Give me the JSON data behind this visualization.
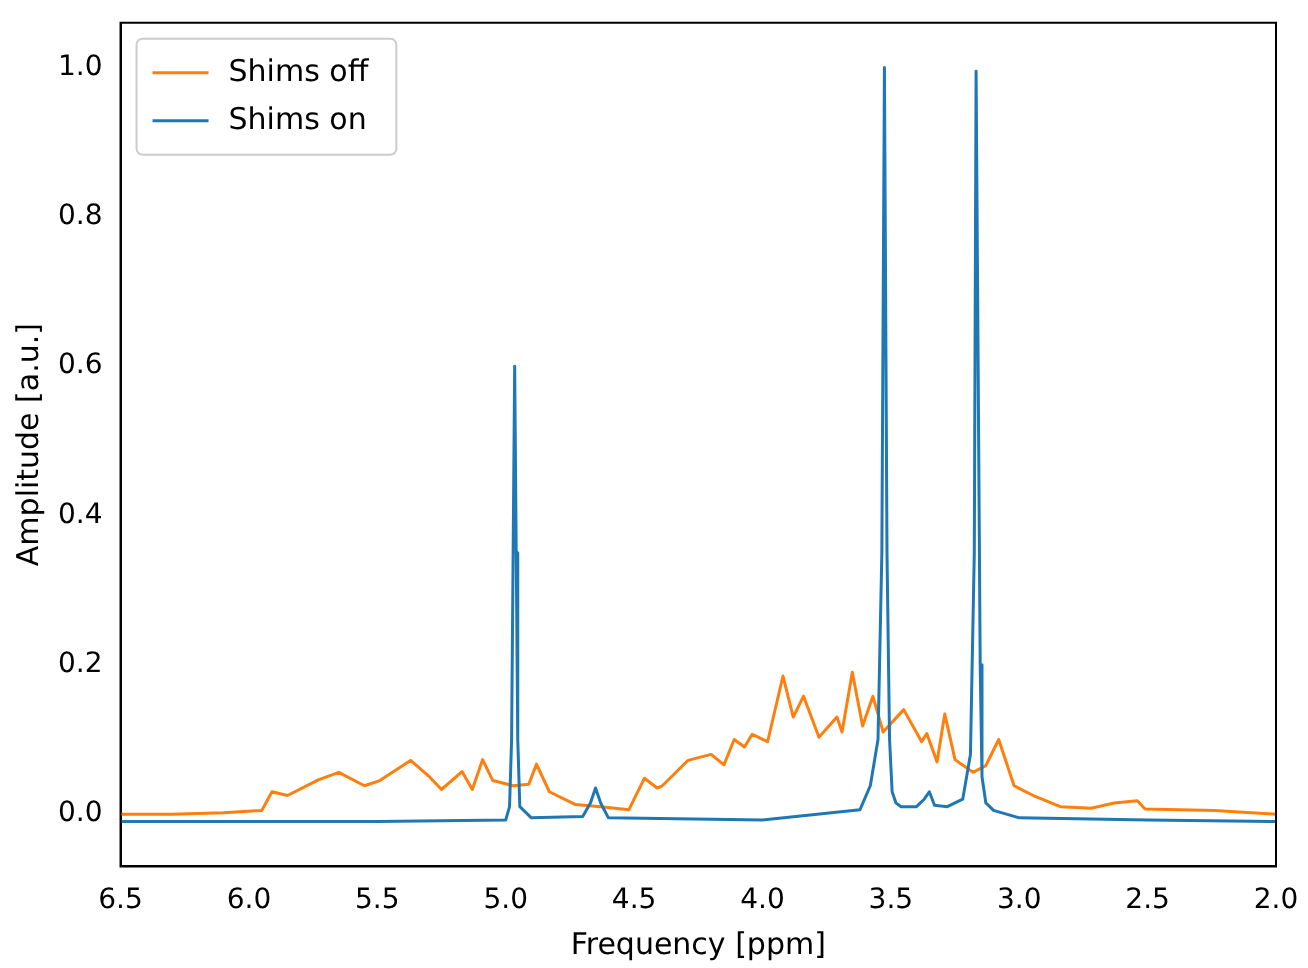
{
  "chart_data": {
    "type": "line",
    "xlabel": "Frequency [ppm]",
    "ylabel": "Amplitude [a.u.]",
    "xlim": [
      6.5,
      2.0
    ],
    "ylim": [
      -0.07,
      1.06
    ],
    "xticks": [
      6.5,
      {
        "value": 6.0,
        "label": "6.0"
      },
      5.5,
      {
        "value": 5.0,
        "label": "5.0"
      },
      4.5,
      {
        "value": 4.0,
        "label": "4.0"
      },
      3.5,
      {
        "value": 3.0,
        "label": "3.0"
      },
      2.5,
      {
        "value": 2.0,
        "label": "2.0"
      }
    ],
    "yticks": [
      {
        "value": 0,
        "label": "0.0"
      },
      {
        "value": 0.2,
        "label": "0.2"
      },
      {
        "value": 0.4,
        "label": "0.4"
      },
      {
        "value": 0.6,
        "label": "0.6"
      },
      {
        "value": 0.8,
        "label": "0.8"
      },
      {
        "value": 1.0,
        "label": "1.0"
      }
    ],
    "legend": "top left",
    "grid": false,
    "marker": "none",
    "line_style": "solid",
    "series": [
      {
        "name": "Shims off",
        "color": "#ff7f0e",
        "x": [
          6.5,
          6.3,
          6.1,
          5.95,
          5.91,
          5.85,
          5.73,
          5.65,
          5.55,
          5.49,
          5.37,
          5.3,
          5.25,
          5.17,
          5.13,
          5.09,
          5.05,
          4.97,
          4.91,
          4.88,
          4.83,
          4.73,
          4.63,
          4.52,
          4.46,
          4.41,
          4.39,
          4.29,
          4.2,
          4.15,
          4.11,
          4.07,
          4.04,
          3.98,
          3.92,
          3.88,
          3.84,
          3.78,
          3.71,
          3.69,
          3.65,
          3.61,
          3.57,
          3.53,
          3.45,
          3.38,
          3.36,
          3.32,
          3.29,
          3.25,
          3.18,
          3.13,
          3.08,
          3.02,
          2.94,
          2.84,
          2.72,
          2.63,
          2.54,
          2.51,
          2.24,
          2.0
        ],
        "values": [
          0.0,
          0.0,
          0.002,
          0.005,
          0.03,
          0.025,
          0.046,
          0.056,
          0.038,
          0.045,
          0.072,
          0.051,
          0.033,
          0.057,
          0.033,
          0.073,
          0.045,
          0.038,
          0.04,
          0.067,
          0.03,
          0.013,
          0.01,
          0.006,
          0.048,
          0.035,
          0.038,
          0.072,
          0.08,
          0.066,
          0.1,
          0.09,
          0.107,
          0.097,
          0.185,
          0.13,
          0.158,
          0.103,
          0.13,
          0.11,
          0.19,
          0.118,
          0.158,
          0.11,
          0.14,
          0.097,
          0.108,
          0.07,
          0.134,
          0.073,
          0.056,
          0.065,
          0.1,
          0.038,
          0.024,
          0.01,
          0.008,
          0.015,
          0.018,
          0.007,
          0.005,
          0.0
        ]
      },
      {
        "name": "Shims on",
        "color": "#1f77b4",
        "x": [
          6.5,
          6.0,
          5.5,
          5.0,
          4.985,
          4.977,
          4.971,
          4.965,
          4.959,
          4.953,
          4.945,
          4.9,
          4.7,
          4.67,
          4.65,
          4.63,
          4.6,
          4.0,
          3.62,
          3.58,
          3.55,
          3.535,
          3.525,
          3.515,
          3.505,
          3.495,
          3.48,
          3.46,
          3.4,
          3.37,
          3.35,
          3.33,
          3.28,
          3.22,
          3.19,
          3.175,
          3.168,
          3.16,
          3.152,
          3.145,
          3.13,
          3.1,
          3.0,
          2.5,
          2.0
        ],
        "values": [
          -0.01,
          -0.01,
          -0.01,
          -0.008,
          0.01,
          0.1,
          0.35,
          0.6,
          0.35,
          0.1,
          0.01,
          -0.005,
          -0.003,
          0.015,
          0.035,
          0.015,
          -0.005,
          -0.008,
          0.006,
          0.038,
          0.1,
          0.35,
          1.0,
          0.35,
          0.1,
          0.03,
          0.015,
          0.01,
          0.01,
          0.02,
          0.03,
          0.012,
          0.01,
          0.02,
          0.08,
          0.35,
          0.995,
          0.6,
          0.2,
          0.05,
          0.015,
          0.005,
          -0.005,
          -0.008,
          -0.01
        ]
      }
    ]
  }
}
